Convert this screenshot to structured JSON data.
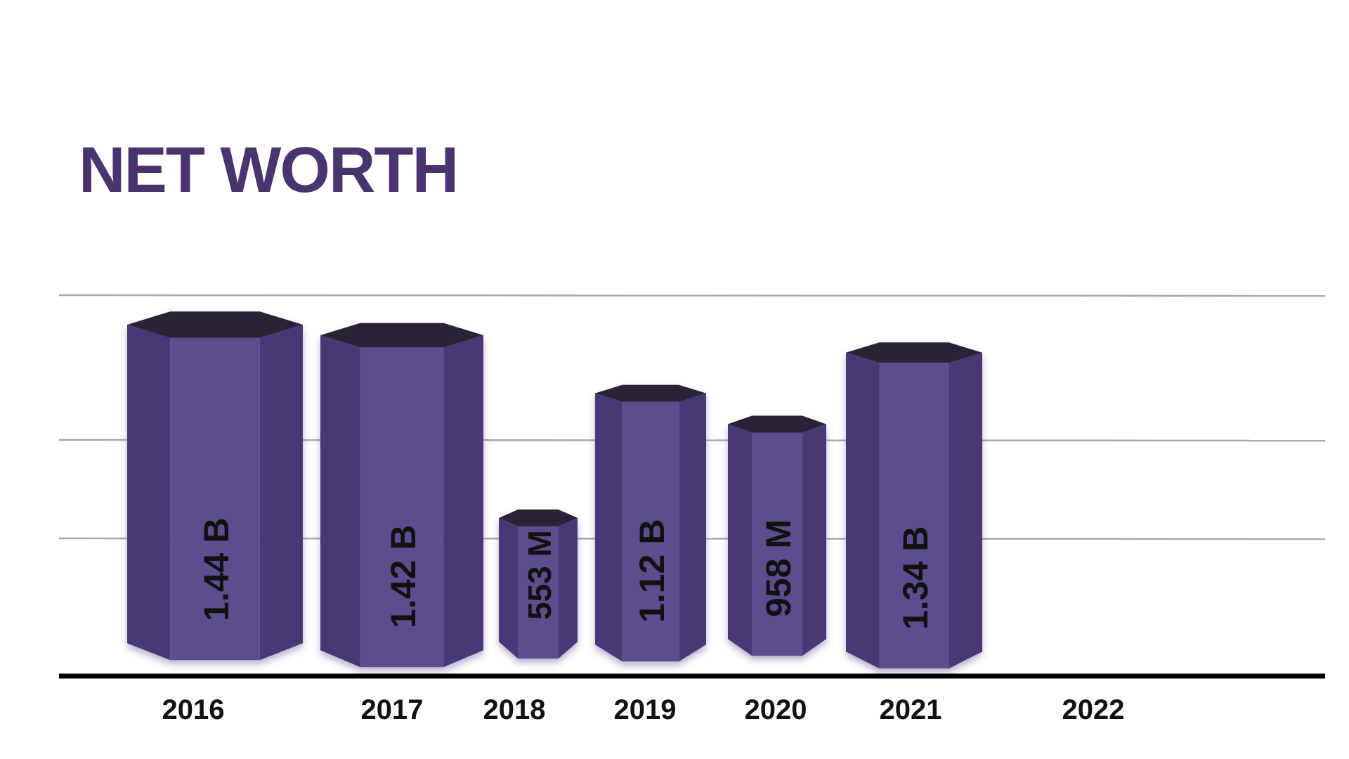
{
  "colors": {
    "title": "#4a3470",
    "bar_front": "#5d4d8f",
    "bar_side": "#4a3876",
    "bar_top": "#2c2034",
    "gridline": "#a8a8a8",
    "baseline": "#000000",
    "label_text": "#111111"
  },
  "chart_data": {
    "type": "bar",
    "title": "NET WORTH",
    "categories": [
      "2016",
      "2017",
      "2018",
      "2019",
      "2020",
      "2021",
      "2022"
    ],
    "series": [
      {
        "values": [
          1.44,
          1.42,
          0.553,
          1.12,
          0.958,
          1.34,
          null
        ],
        "labels": [
          "1.44 B",
          "1.42 B",
          "553 M",
          "1.12 B",
          "958 M",
          "1.34 B",
          ""
        ]
      }
    ],
    "value_unit": "billions",
    "gridlines": [
      0.95,
      1.4
    ],
    "grid": true,
    "legend": "none"
  }
}
